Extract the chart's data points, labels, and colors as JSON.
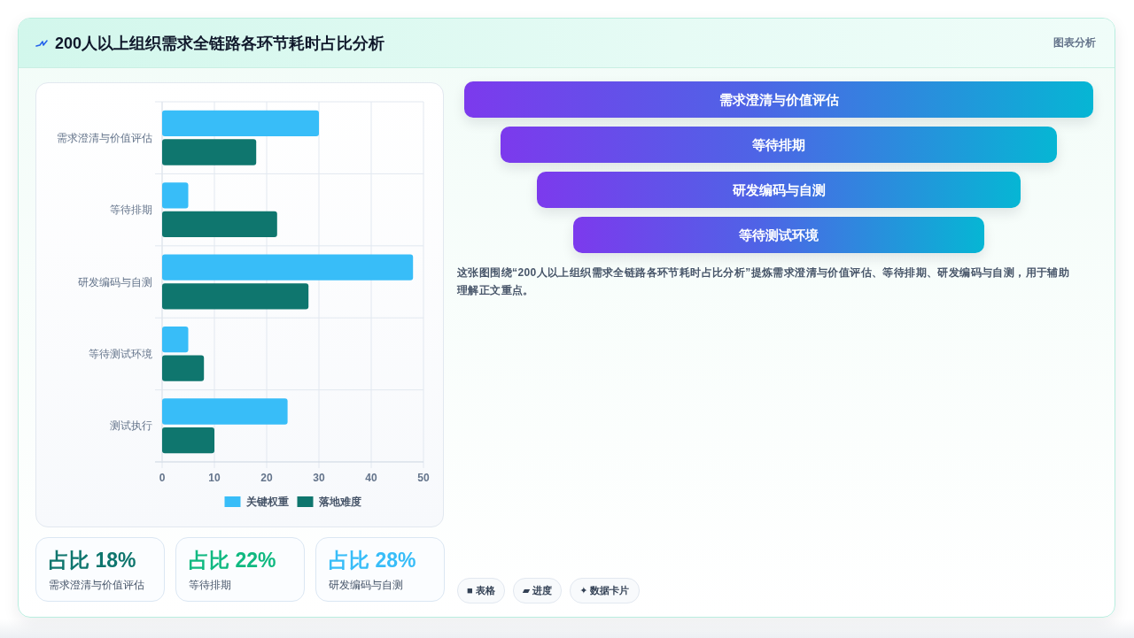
{
  "chart_data": [
    {
      "type": "bar",
      "orientation": "horizontal",
      "title": "200人以上组织需求全链路各环节耗时占比分析",
      "annotations": [
        "图表分析"
      ],
      "categories": [
        "需求澄清与价值评估",
        "等待排期",
        "研发编码与自测",
        "等待测试环境",
        "测试执行"
      ],
      "series": [
        {
          "name": "关键权重",
          "color": "#38bdf8",
          "values": [
            30,
            5,
            48,
            5,
            24
          ]
        },
        {
          "name": "落地难度",
          "color": "#0f766e",
          "values": [
            18,
            22,
            28,
            8,
            10
          ]
        }
      ],
      "xlim": [
        0,
        50
      ],
      "xticks": [
        0,
        10,
        20,
        30,
        40,
        50
      ],
      "grid": true,
      "legend": "bottom"
    },
    {
      "type": "other",
      "categories": [
        "需求澄清与价值评估",
        "等待排期",
        "研发编码与自测",
        "等待测试环境"
      ],
      "annotations": [
        "这张图围绕“200人以上组织需求全链路各环节耗时占比分析”提炼需求澄清与价值评估、等待排期、研发编码与自测，用于辅助理解正文重点。"
      ]
    },
    {
      "type": "other",
      "annotations": [
        "占比 18%",
        "需求澄清与价值评估",
        "占比 22%",
        "等待排期",
        "占比 28%",
        "研发编码与自测"
      ]
    },
    {
      "type": "other",
      "annotations": [
        "■ 表格",
        "▰ 进度",
        "✦ 数据卡片"
      ]
    }
  ]
}
